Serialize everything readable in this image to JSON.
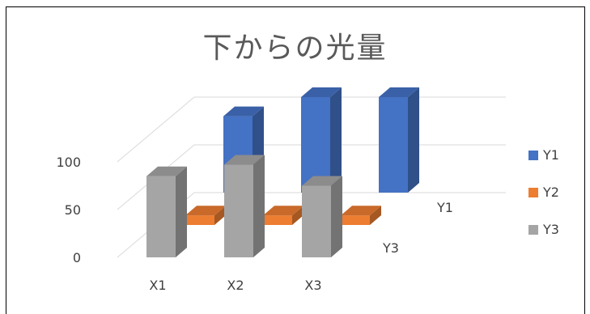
{
  "chart_data": {
    "type": "bar",
    "subtype": "3d-column",
    "title": "下からの光量",
    "categories": [
      "X1",
      "X2",
      "X3"
    ],
    "series": [
      {
        "name": "Y1",
        "values": [
          80,
          100,
          100
        ],
        "color": "#4472C4"
      },
      {
        "name": "Y2",
        "values": [
          10,
          10,
          10
        ],
        "color": "#ED7D31"
      },
      {
        "name": "Y3",
        "values": [
          85,
          97,
          75
        ],
        "color": "#A5A5A5"
      }
    ],
    "y_ticks": [
      "0",
      "50",
      "100"
    ],
    "depth_labels": [
      "Y1",
      "Y3"
    ],
    "ylim": [
      0,
      100
    ],
    "grid": true,
    "legend_position": "right"
  }
}
